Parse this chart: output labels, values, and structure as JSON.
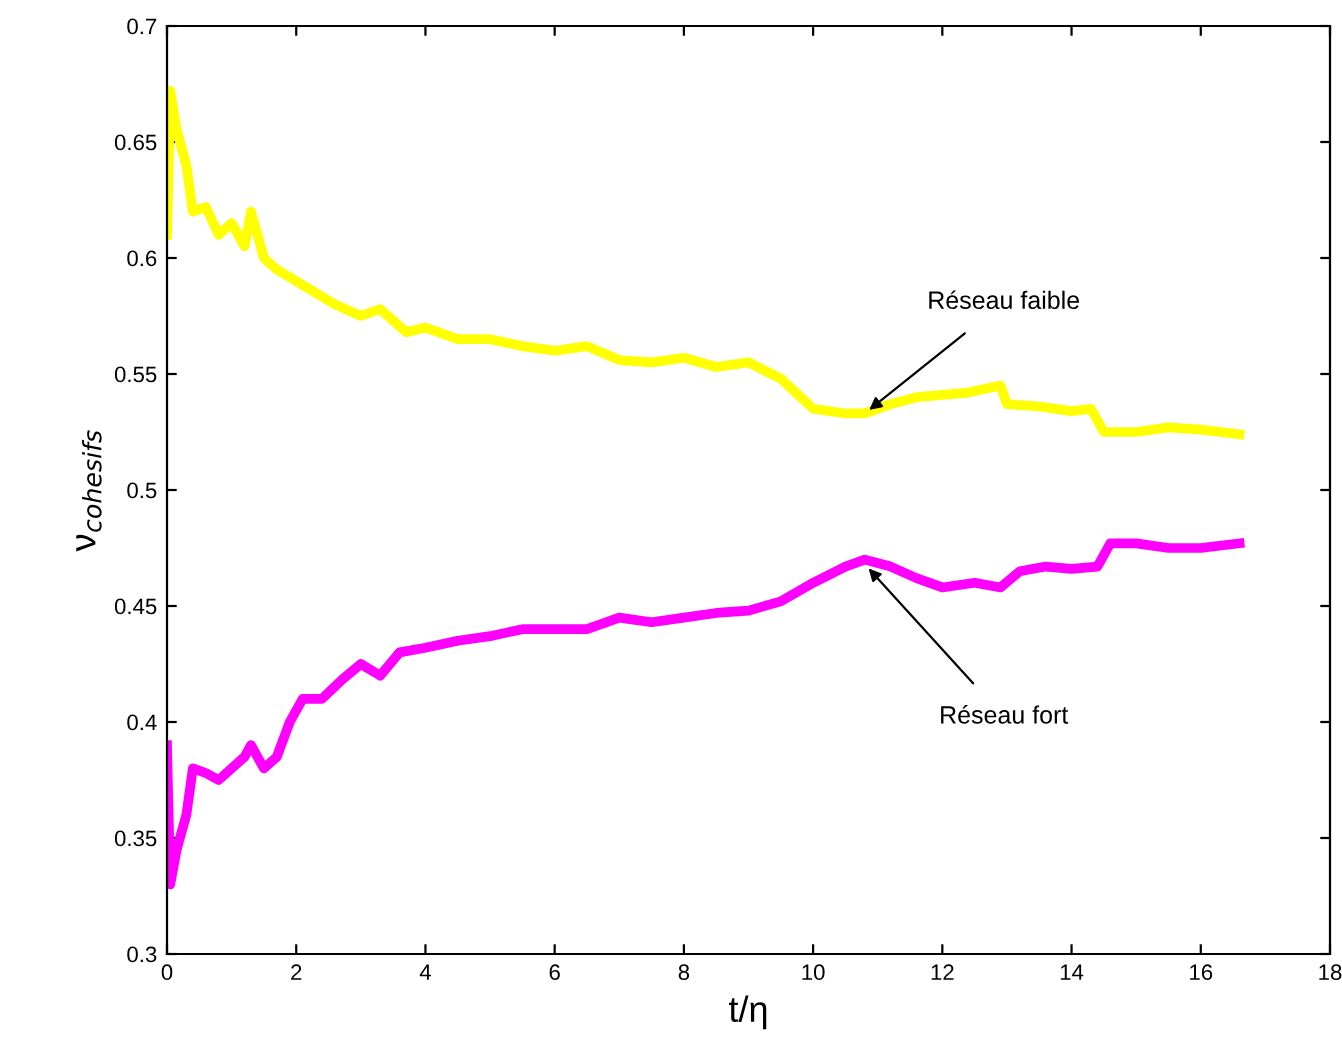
{
  "chart_data": {
    "type": "line",
    "xlabel": "t/η",
    "ylabel": "ν$_{cohesifs}$",
    "xlim": [
      0,
      18
    ],
    "xticks": [
      0,
      2,
      4,
      6,
      8,
      10,
      12,
      14,
      16,
      18
    ],
    "ylim": [
      0.3,
      0.7
    ],
    "yticks": [
      0.3,
      0.35,
      0.4,
      0.45,
      0.5,
      0.55,
      0.6,
      0.65,
      0.7
    ],
    "grid": false,
    "marker": "none",
    "line_style": "solid",
    "series": [
      {
        "color": "#ffff00",
        "x": [
          0.0,
          0.05,
          0.15,
          0.3,
          0.4,
          0.6,
          0.8,
          1.0,
          1.2,
          1.3,
          1.5,
          1.7,
          2.0,
          2.3,
          2.6,
          3.0,
          3.3,
          3.7,
          4.0,
          4.5,
          5.0,
          5.5,
          6.0,
          6.5,
          7.0,
          7.5,
          8.0,
          8.5,
          9.0,
          9.5,
          10.0,
          10.5,
          10.8,
          11.2,
          11.6,
          12.0,
          12.4,
          12.9,
          13.0,
          13.5,
          14.0,
          14.3,
          14.5,
          15.0,
          15.5,
          16.0,
          16.3,
          16.6
        ],
        "values": [
          0.61,
          0.672,
          0.655,
          0.64,
          0.62,
          0.622,
          0.61,
          0.615,
          0.605,
          0.62,
          0.6,
          0.595,
          0.59,
          0.585,
          0.58,
          0.575,
          0.578,
          0.568,
          0.57,
          0.565,
          0.565,
          0.562,
          0.56,
          0.562,
          0.556,
          0.555,
          0.557,
          0.553,
          0.555,
          0.548,
          0.535,
          0.533,
          0.533,
          0.537,
          0.54,
          0.541,
          0.542,
          0.545,
          0.537,
          0.536,
          0.534,
          0.535,
          0.525,
          0.525,
          0.527,
          0.526,
          0.525,
          0.524
        ]
      },
      {
        "color": "#ff00ff",
        "x": [
          0.0,
          0.05,
          0.15,
          0.3,
          0.4,
          0.6,
          0.8,
          1.0,
          1.2,
          1.3,
          1.5,
          1.7,
          1.9,
          2.1,
          2.4,
          2.7,
          3.0,
          3.3,
          3.6,
          4.0,
          4.5,
          5.0,
          5.5,
          6.0,
          6.5,
          7.0,
          7.5,
          8.0,
          8.5,
          9.0,
          9.5,
          10.0,
          10.5,
          10.8,
          11.2,
          11.6,
          12.0,
          12.5,
          12.9,
          13.2,
          13.6,
          14.0,
          14.4,
          14.6,
          15.0,
          15.5,
          16.0,
          16.6
        ],
        "values": [
          0.39,
          0.33,
          0.345,
          0.36,
          0.38,
          0.378,
          0.375,
          0.38,
          0.385,
          0.39,
          0.38,
          0.385,
          0.4,
          0.41,
          0.41,
          0.418,
          0.425,
          0.42,
          0.43,
          0.432,
          0.435,
          0.437,
          0.44,
          0.44,
          0.44,
          0.445,
          0.443,
          0.445,
          0.447,
          0.448,
          0.452,
          0.46,
          0.467,
          0.47,
          0.467,
          0.462,
          0.458,
          0.46,
          0.458,
          0.465,
          0.467,
          0.466,
          0.467,
          0.477,
          0.477,
          0.475,
          0.475,
          0.477
        ]
      }
    ],
    "annotations": [
      {
        "text": "Réseau faible",
        "x": 10.8,
        "y": 0.533
      },
      {
        "text": "Réseau fort",
        "x": 10.8,
        "y": 0.468
      }
    ]
  }
}
